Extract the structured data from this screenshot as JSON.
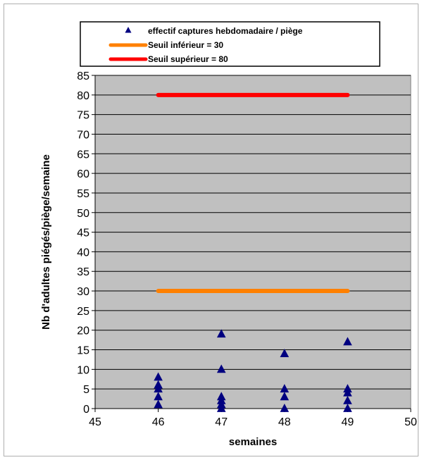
{
  "chart_data": {
    "type": "scatter",
    "xlabel": "semaines",
    "ylabel": "Nb d'adultes piégés/piège/semaine",
    "xlim": [
      45,
      50
    ],
    "ylim": [
      0,
      85
    ],
    "xticks": [
      "45",
      "46",
      "47",
      "48",
      "49",
      "50"
    ],
    "yticks": [
      "0",
      "5",
      "10",
      "15",
      "20",
      "25",
      "30",
      "35",
      "40",
      "45",
      "50",
      "55",
      "60",
      "65",
      "70",
      "75",
      "80",
      "85"
    ],
    "grid": true,
    "legend_position": "top",
    "series": [
      {
        "name": "effectif captures hebdomadaire / piège",
        "kind": "scatter",
        "marker": "triangle",
        "color": "#000080",
        "points": [
          [
            46,
            8
          ],
          [
            46,
            6
          ],
          [
            46,
            5
          ],
          [
            46,
            3
          ],
          [
            46,
            1
          ],
          [
            47,
            19
          ],
          [
            47,
            10
          ],
          [
            47,
            3
          ],
          [
            47,
            2
          ],
          [
            47,
            1
          ],
          [
            47,
            0
          ],
          [
            48,
            14
          ],
          [
            48,
            5
          ],
          [
            48,
            3
          ],
          [
            48,
            0
          ],
          [
            49,
            17
          ],
          [
            49,
            5
          ],
          [
            49,
            4
          ],
          [
            49,
            2
          ],
          [
            49,
            0
          ]
        ]
      },
      {
        "name": "Seuil inférieur = 30",
        "kind": "line",
        "color": "#ff8000",
        "points": [
          [
            46,
            30
          ],
          [
            49,
            30
          ]
        ]
      },
      {
        "name": "Seuil supérieur = 80",
        "kind": "line",
        "color": "#ff0000",
        "points": [
          [
            46,
            80
          ],
          [
            49,
            80
          ]
        ]
      }
    ],
    "plot_background": "#c0c0c0"
  }
}
